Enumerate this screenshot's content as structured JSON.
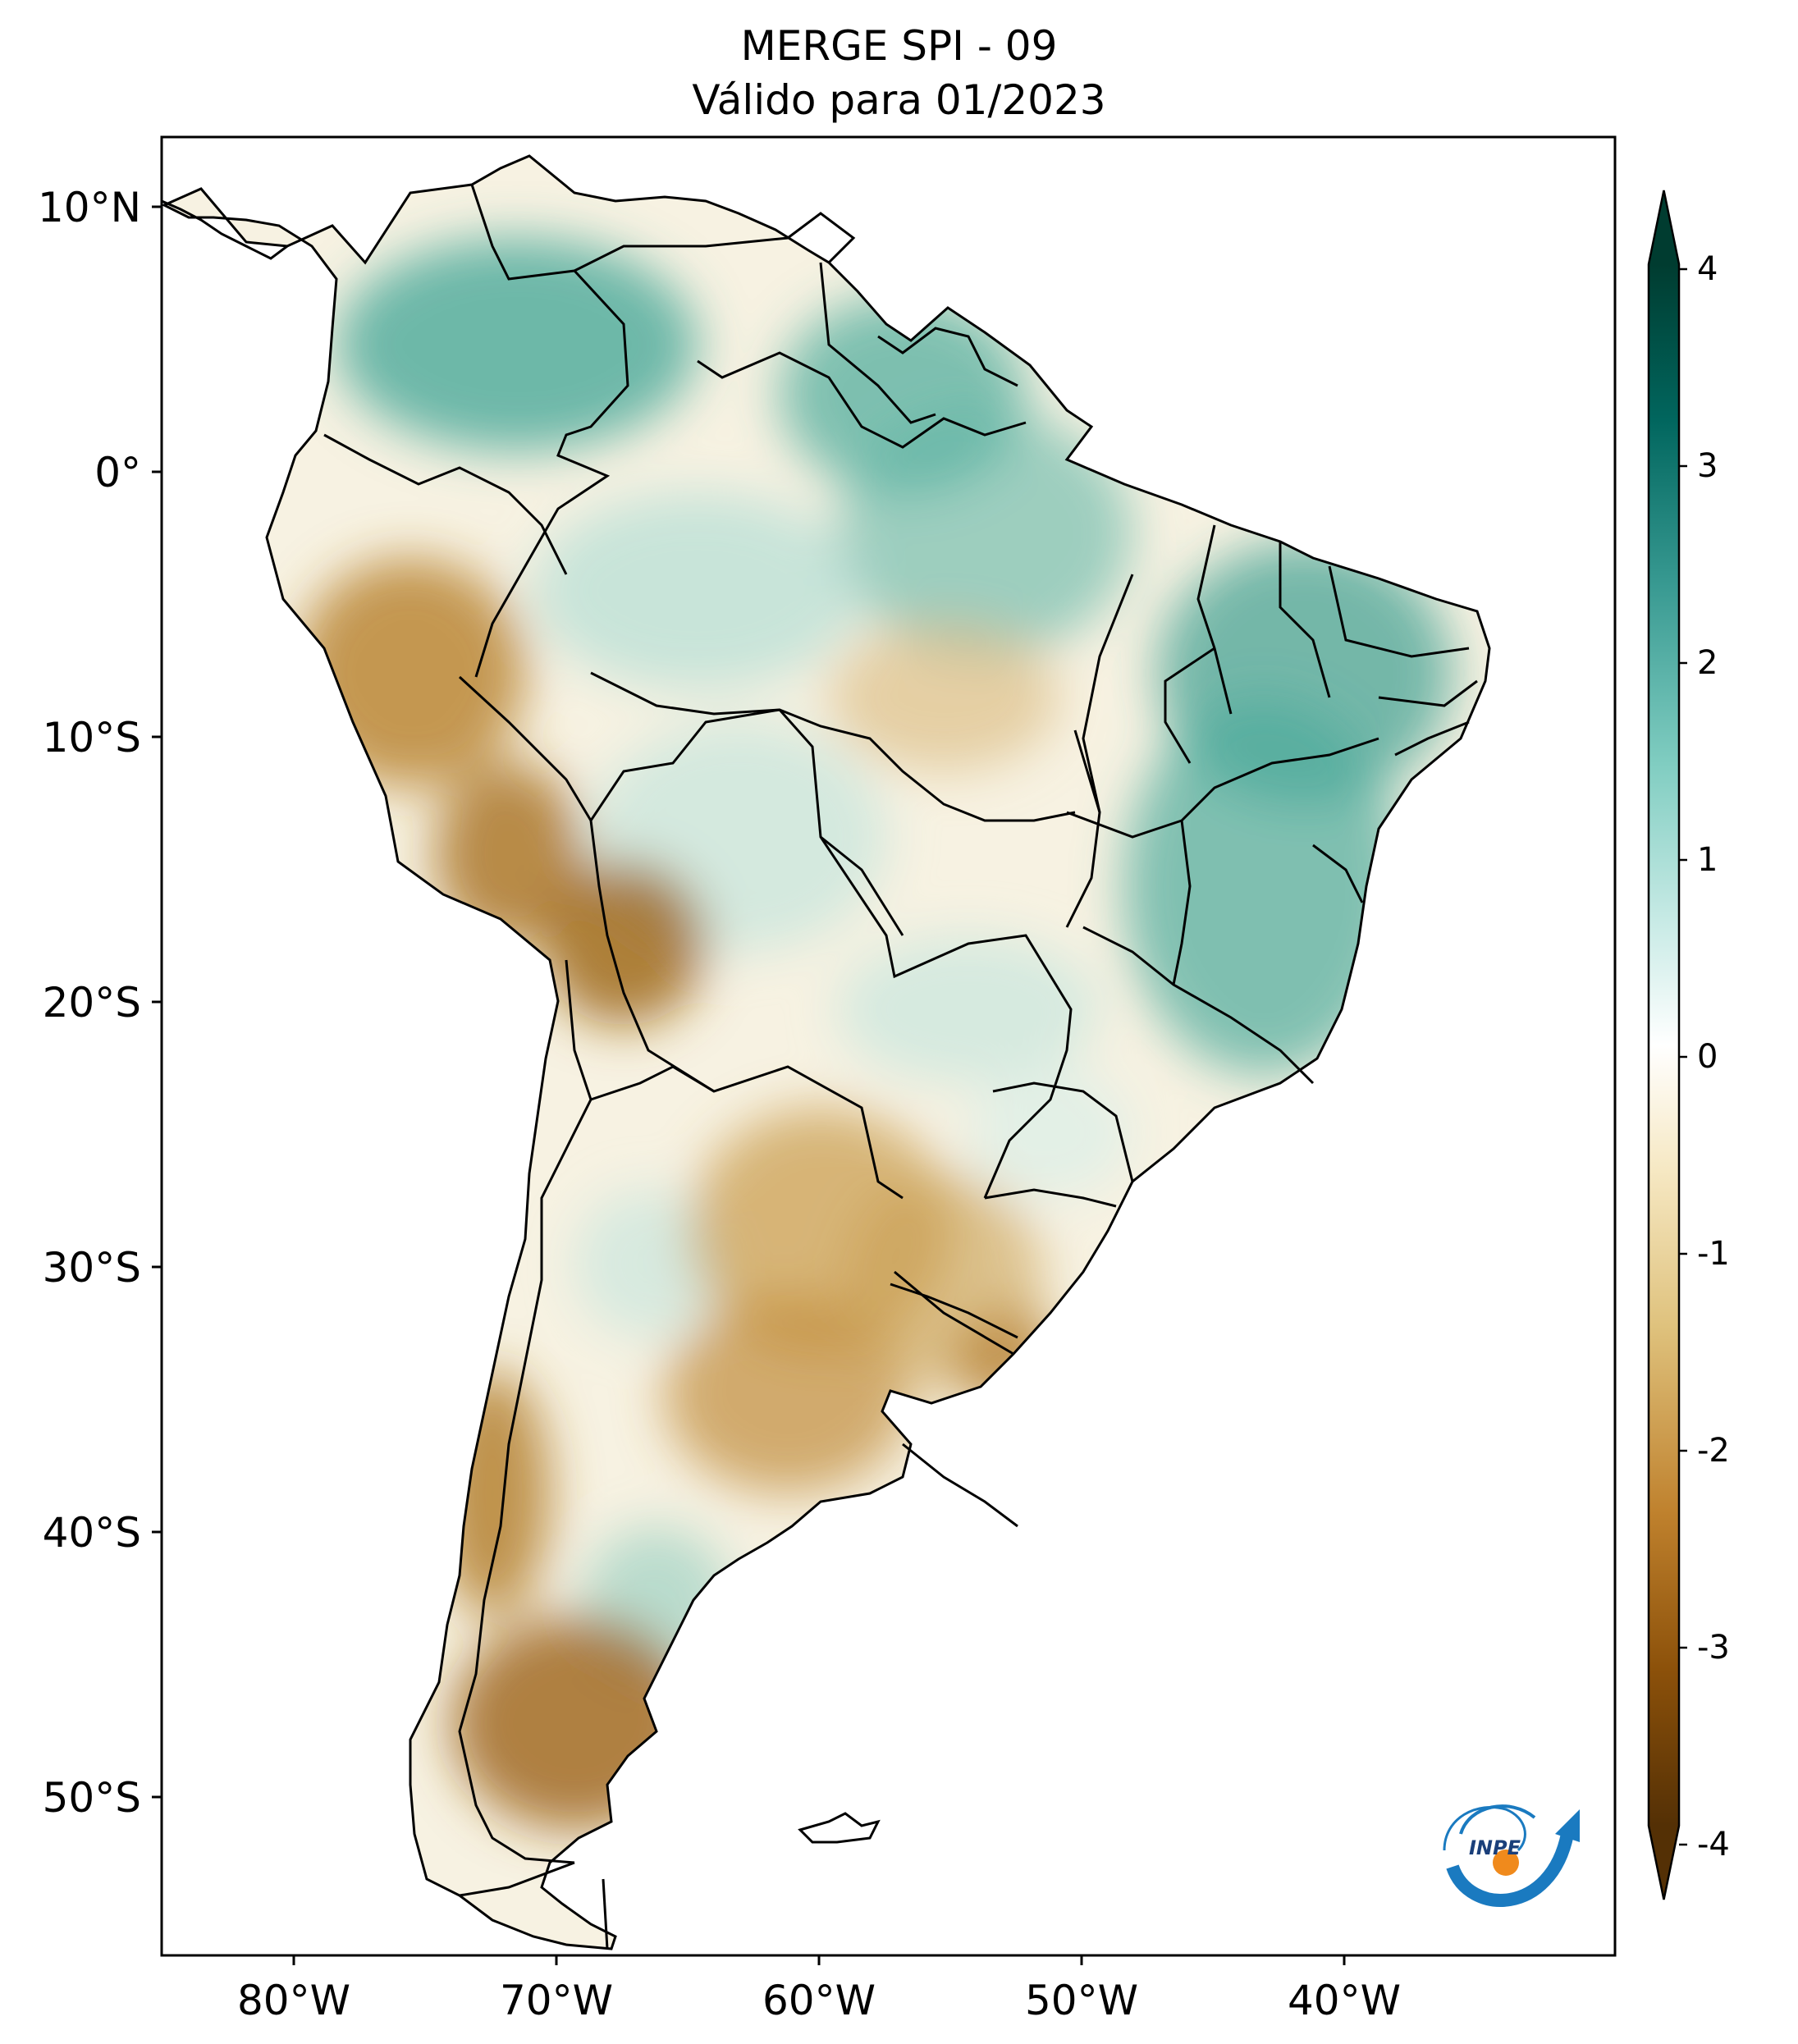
{
  "map": {
    "title": "MERGE   SPI - 09",
    "subtitle": "Válido para 01/2023",
    "lat_labels": [
      "10°N",
      "0°",
      "10°S",
      "20°S",
      "30°S",
      "40°S",
      "50°S"
    ],
    "lon_labels": [
      "80°W",
      "70°W",
      "60°W",
      "50°W",
      "40°W"
    ],
    "extent": {
      "lon_min": -85,
      "lon_max": -29.5,
      "lat_min": -56,
      "lat_max": 13
    },
    "region": "South America",
    "variable": "SPI-09 (Standardized Precipitation Index, 9 months)",
    "valid_date": "01/2023",
    "logo": {
      "text": "INPE",
      "colors": [
        "#1a7ac0",
        "#f08a1c"
      ]
    }
  },
  "colorbar": {
    "ticks": [
      "4",
      "3",
      "2",
      "1",
      "0",
      "-1",
      "-2",
      "-3",
      "-4"
    ],
    "min": -4,
    "max": 4,
    "colormap": "BrBG",
    "stops": [
      "#543005",
      "#8c510a",
      "#bf812d",
      "#dfc27d",
      "#f6e8c3",
      "#ffffff",
      "#c7eae5",
      "#80cdc1",
      "#35978f",
      "#01665e",
      "#003c30"
    ],
    "extend": "both"
  },
  "colors": {
    "dry": "#a0661a",
    "wet": "#2e9686",
    "border": "#000000"
  }
}
